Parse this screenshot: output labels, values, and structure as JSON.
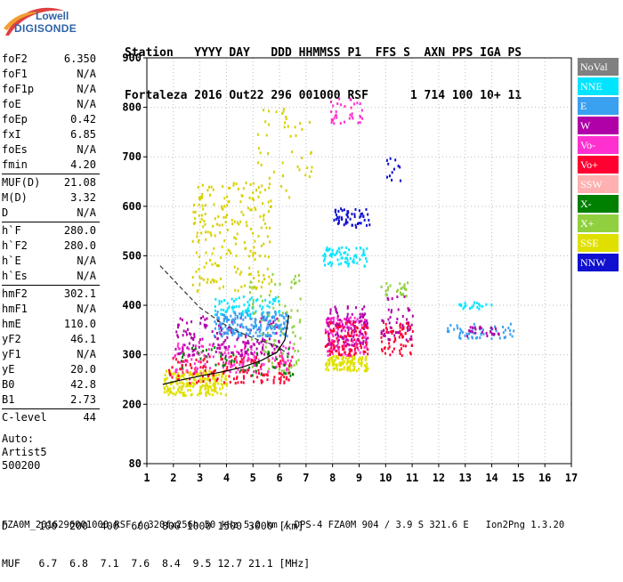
{
  "logo": {
    "line1": "Lowell",
    "line2": "DIGISONDE"
  },
  "header": {
    "line1": "Station   YYYY DAY   DDD HHMMSS P1  FFS S  AXN PPS IGA PS",
    "line2": "Fortaleza 2016 Out22 296 001000 RSF      1 714 100 10+ 11"
  },
  "parameters": [
    {
      "name": "foF2",
      "value": "6.350"
    },
    {
      "name": "foF1",
      "value": "N/A"
    },
    {
      "name": "foF1p",
      "value": "N/A"
    },
    {
      "name": "foE",
      "value": "N/A"
    },
    {
      "name": "foEp",
      "value": "0.42"
    },
    {
      "name": "fxI",
      "value": "6.85"
    },
    {
      "name": "foEs",
      "value": "N/A"
    },
    {
      "name": "fmin",
      "value": "4.20"
    },
    {
      "name": "MUF(D)",
      "value": "21.08",
      "sep_before": true
    },
    {
      "name": "M(D)",
      "value": "3.32"
    },
    {
      "name": "D",
      "value": "N/A"
    },
    {
      "name": "h`F",
      "value": "280.0",
      "sep_before": true
    },
    {
      "name": "h`F2",
      "value": "280.0"
    },
    {
      "name": "h`E",
      "value": "N/A"
    },
    {
      "name": "h`Es",
      "value": "N/A"
    },
    {
      "name": "hmF2",
      "value": "302.1",
      "sep_before": true
    },
    {
      "name": "hmF1",
      "value": "N/A"
    },
    {
      "name": "hmE",
      "value": "110.0"
    },
    {
      "name": "yF2",
      "value": "46.1"
    },
    {
      "name": "yF1",
      "value": "N/A"
    },
    {
      "name": "yE",
      "value": "20.0"
    },
    {
      "name": "B0",
      "value": "42.8"
    },
    {
      "name": "B1",
      "value": "2.73"
    },
    {
      "name": "C-level",
      "value": "44",
      "sep_before": true
    }
  ],
  "auto": {
    "line1": "Auto:",
    "line2": "Artist5",
    "line3": "500200"
  },
  "legend": [
    {
      "label": "NoVal",
      "color": "#808080"
    },
    {
      "label": "NNE",
      "color": "#00e5ff"
    },
    {
      "label": "E",
      "color": "#3aa0f0"
    },
    {
      "label": "W",
      "color": "#b000a8"
    },
    {
      "label": "Vo-",
      "color": "#ff30d0"
    },
    {
      "label": "Vo+",
      "color": "#ff0030"
    },
    {
      "label": "SSW",
      "color": "#ffb0b0"
    },
    {
      "label": "X-",
      "color": "#008000"
    },
    {
      "label": "X+",
      "color": "#90d040"
    },
    {
      "label": "SSE",
      "color": "#e0e000"
    },
    {
      "label": "NNW",
      "color": "#1010d0"
    }
  ],
  "footer": {
    "line1": "D     100  200  400  600  800 1000 1500 3000 [km]",
    "line2": "MUF   6.7  6.8  7.1  7.6  8.4  9.5 12.7 21.1 [MHz]",
    "line3": "FZA0M_2016296001000.RSF / 320fx256h 50 kHz 5.0 km / DPS-4 FZA0M 904 / 3.9 S 321.6 E   Ion2Png 1.3.20"
  },
  "chart_data": {
    "type": "scatter",
    "x_ticks": [
      "1",
      "2",
      "3",
      "4",
      "5",
      "6",
      "7",
      "8",
      "9",
      "10",
      "11",
      "12",
      "13",
      "14",
      "15",
      "16",
      "17"
    ],
    "y_ticks": [
      "80",
      "200",
      "300",
      "400",
      "500",
      "600",
      "700",
      "800",
      "900"
    ],
    "xlim": [
      1,
      17
    ],
    "ylim": [
      80,
      900
    ],
    "grid": true,
    "legend_position": "right",
    "clusters": [
      {
        "x": [
          1.6,
          4.0
        ],
        "y": [
          220,
          270
        ],
        "color": "#e0e000",
        "n": 220
      },
      {
        "x": [
          1.8,
          6.5
        ],
        "y": [
          245,
          300
        ],
        "color": "#ff0030",
        "n": 160
      },
      {
        "x": [
          2.0,
          6.5
        ],
        "y": [
          265,
          330
        ],
        "color": "#ff30d0",
        "n": 150
      },
      {
        "x": [
          2.0,
          6.0
        ],
        "y": [
          300,
          380
        ],
        "color": "#b000a8",
        "n": 160
      },
      {
        "x": [
          3.5,
          6.3
        ],
        "y": [
          340,
          390
        ],
        "color": "#3aa0f0",
        "n": 200
      },
      {
        "x": [
          3.5,
          6.0
        ],
        "y": [
          380,
          420
        ],
        "color": "#00e5ff",
        "n": 70
      },
      {
        "x": [
          2.7,
          5.7
        ],
        "y": [
          430,
          650
        ],
        "color": "#d8d000",
        "n": 220
      },
      {
        "x": [
          5.0,
          7.2
        ],
        "y": [
          620,
          800
        ],
        "color": "#d8d000",
        "n": 45
      },
      {
        "x": [
          4.8,
          6.8
        ],
        "y": [
          250,
          470
        ],
        "color": "#90d040",
        "n": 80
      },
      {
        "x": [
          2.2,
          6.5
        ],
        "y": [
          260,
          320
        ],
        "color": "#008000",
        "n": 50
      },
      {
        "x": [
          7.7,
          9.3
        ],
        "y": [
          270,
          300
        ],
        "color": "#e0e000",
        "n": 120
      },
      {
        "x": [
          7.7,
          9.3
        ],
        "y": [
          300,
          380
        ],
        "color": "#ff30d0",
        "n": 140
      },
      {
        "x": [
          7.7,
          9.3
        ],
        "y": [
          300,
          370
        ],
        "color": "#ff0030",
        "n": 110
      },
      {
        "x": [
          7.7,
          9.3
        ],
        "y": [
          320,
          400
        ],
        "color": "#b000a8",
        "n": 80
      },
      {
        "x": [
          7.6,
          9.3
        ],
        "y": [
          480,
          520
        ],
        "color": "#00e5ff",
        "n": 70
      },
      {
        "x": [
          8.0,
          9.4
        ],
        "y": [
          560,
          600
        ],
        "color": "#1010d0",
        "n": 55
      },
      {
        "x": [
          7.9,
          9.1
        ],
        "y": [
          770,
          820
        ],
        "color": "#ff30d0",
        "n": 35
      },
      {
        "x": [
          9.8,
          11.0
        ],
        "y": [
          300,
          370
        ],
        "color": "#ff0030",
        "n": 70
      },
      {
        "x": [
          9.8,
          11.0
        ],
        "y": [
          330,
          420
        ],
        "color": "#b000a8",
        "n": 45
      },
      {
        "x": [
          9.8,
          10.8
        ],
        "y": [
          420,
          450
        ],
        "color": "#90d040",
        "n": 25
      },
      {
        "x": [
          12.3,
          14.8
        ],
        "y": [
          335,
          365
        ],
        "color": "#3aa0f0",
        "n": 55
      },
      {
        "x": [
          13.0,
          14.3
        ],
        "y": [
          340,
          360
        ],
        "color": "#b000a8",
        "n": 25
      },
      {
        "x": [
          12.7,
          14.0
        ],
        "y": [
          395,
          410
        ],
        "color": "#00e5ff",
        "n": 20
      },
      {
        "x": [
          10.0,
          10.6
        ],
        "y": [
          650,
          700
        ],
        "color": "#1010d0",
        "n": 12
      }
    ],
    "profile_dashed": {
      "x": [
        1.5,
        2.2,
        3.0,
        3.8,
        4.5,
        5.2,
        5.9,
        6.35
      ],
      "y": [
        480,
        440,
        395,
        365,
        345,
        330,
        318,
        300
      ]
    },
    "trace_solid": {
      "x": [
        1.6,
        2.2,
        3.0,
        3.8,
        4.6,
        5.3,
        5.9,
        6.2,
        6.35
      ],
      "y": [
        240,
        248,
        257,
        265,
        275,
        288,
        305,
        330,
        380
      ]
    }
  }
}
